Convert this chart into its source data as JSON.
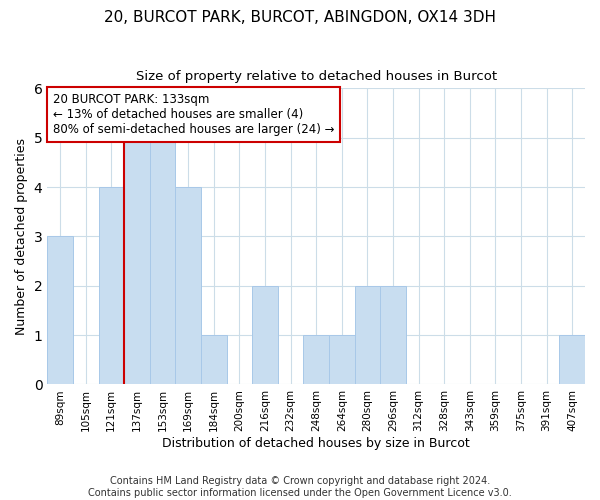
{
  "title": "20, BURCOT PARK, BURCOT, ABINGDON, OX14 3DH",
  "subtitle": "Size of property relative to detached houses in Burcot",
  "xlabel": "Distribution of detached houses by size in Burcot",
  "ylabel": "Number of detached properties",
  "bins": [
    "89sqm",
    "105sqm",
    "121sqm",
    "137sqm",
    "153sqm",
    "169sqm",
    "184sqm",
    "200sqm",
    "216sqm",
    "232sqm",
    "248sqm",
    "264sqm",
    "280sqm",
    "296sqm",
    "312sqm",
    "328sqm",
    "343sqm",
    "359sqm",
    "375sqm",
    "391sqm",
    "407sqm"
  ],
  "values": [
    3,
    0,
    4,
    5,
    5,
    4,
    1,
    0,
    2,
    0,
    1,
    1,
    2,
    2,
    0,
    0,
    0,
    0,
    0,
    0,
    1
  ],
  "bar_color": "#c8ddf0",
  "bar_edge_color": "#a8c8e8",
  "vline_x_index": 3,
  "vline_color": "#cc0000",
  "annotation_text": "20 BURCOT PARK: 133sqm\n← 13% of detached houses are smaller (4)\n80% of semi-detached houses are larger (24) →",
  "annotation_box_color": "#ffffff",
  "annotation_box_edge": "#cc0000",
  "ylim": [
    0,
    6
  ],
  "yticks": [
    0,
    1,
    2,
    3,
    4,
    5,
    6
  ],
  "bg_color": "#ffffff",
  "grid_color": "#ccdde8",
  "footer": "Contains HM Land Registry data © Crown copyright and database right 2024.\nContains public sector information licensed under the Open Government Licence v3.0.",
  "title_fontsize": 11,
  "subtitle_fontsize": 9.5,
  "xlabel_fontsize": 9,
  "ylabel_fontsize": 9,
  "annotation_fontsize": 8.5,
  "footer_fontsize": 7,
  "tick_fontsize": 7.5
}
